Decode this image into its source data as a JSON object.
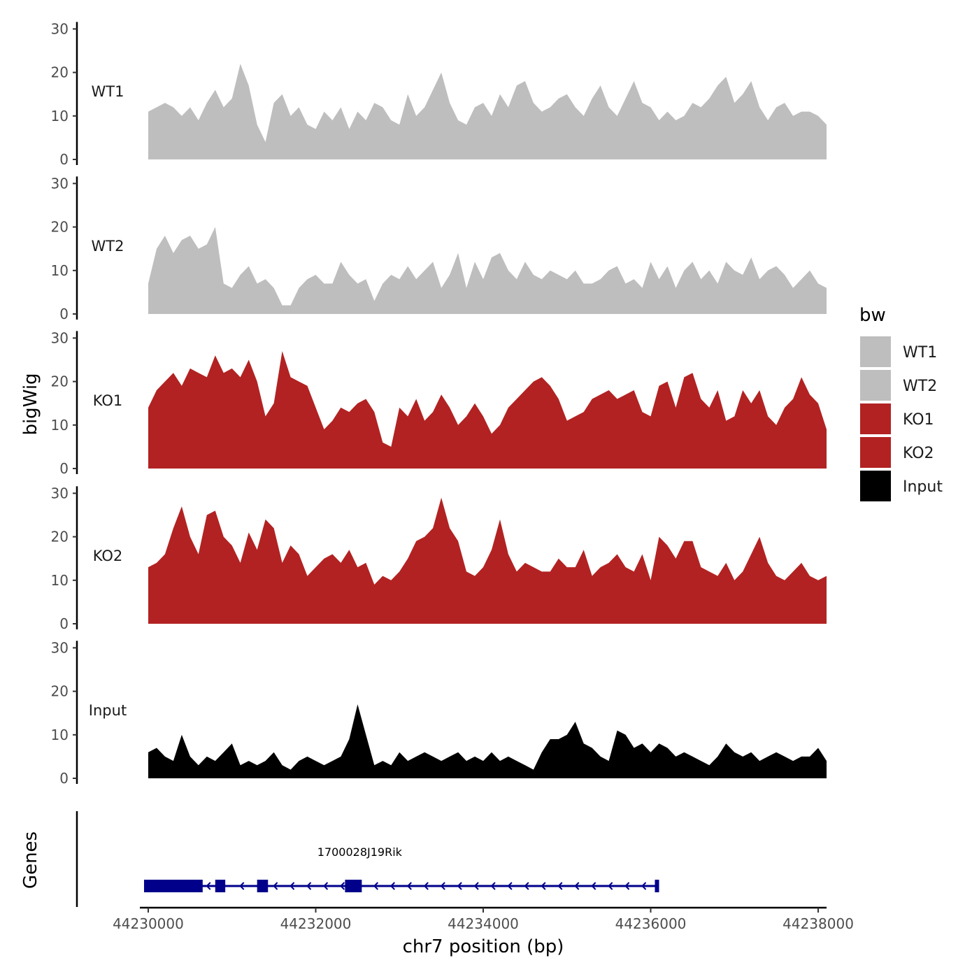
{
  "chart_data": {
    "type": "area",
    "title": "",
    "ylabel": "bigWig",
    "xlabel": "chr7 position (bp)",
    "genes_label": "Genes",
    "xlim": [
      44229900,
      44238100
    ],
    "ylim": [
      0,
      30
    ],
    "y_ticks": [
      0,
      10,
      20,
      30
    ],
    "x_ticks": [
      44230000,
      44232000,
      44234000,
      44236000,
      44238000
    ],
    "x_tick_labels": [
      "44230000",
      "44232000",
      "44234000",
      "44236000",
      "44238000"
    ],
    "legend": {
      "title": "bw",
      "position": "right",
      "entries": [
        {
          "label": "WT1",
          "color": "#bebebe"
        },
        {
          "label": "WT2",
          "color": "#bebebe"
        },
        {
          "label": "KO1",
          "color": "#b22222"
        },
        {
          "label": "KO2",
          "color": "#b22222"
        },
        {
          "label": "Input",
          "color": "#000000"
        }
      ]
    },
    "x_positions": [
      44230000,
      44230100,
      44230200,
      44230300,
      44230400,
      44230500,
      44230600,
      44230700,
      44230800,
      44230900,
      44231000,
      44231100,
      44231200,
      44231300,
      44231400,
      44231500,
      44231600,
      44231700,
      44231800,
      44231900,
      44232000,
      44232100,
      44232200,
      44232300,
      44232400,
      44232500,
      44232600,
      44232700,
      44232800,
      44232900,
      44233000,
      44233100,
      44233200,
      44233300,
      44233400,
      44233500,
      44233600,
      44233700,
      44233800,
      44233900,
      44234000,
      44234100,
      44234200,
      44234300,
      44234400,
      44234500,
      44234600,
      44234700,
      44234800,
      44234900,
      44235000,
      44235100,
      44235200,
      44235300,
      44235400,
      44235500,
      44235600,
      44235700,
      44235800,
      44235900,
      44236000,
      44236100,
      44236200,
      44236300,
      44236400,
      44236500,
      44236600,
      44236700,
      44236800,
      44236900,
      44237000,
      44237100,
      44237200,
      44237300,
      44237400,
      44237500,
      44237600,
      44237700,
      44237800,
      44237900,
      44238000,
      44238100
    ],
    "series": [
      {
        "name": "WT1",
        "color": "#bebebe",
        "values": [
          11,
          12,
          13,
          12,
          10,
          12,
          9,
          13,
          16,
          12,
          14,
          22,
          17,
          8,
          4,
          13,
          15,
          10,
          12,
          8,
          7,
          11,
          9,
          12,
          7,
          11,
          9,
          13,
          12,
          9,
          8,
          15,
          10,
          12,
          16,
          20,
          13,
          9,
          8,
          12,
          13,
          10,
          15,
          12,
          17,
          18,
          13,
          11,
          12,
          14,
          15,
          12,
          10,
          14,
          17,
          12,
          10,
          14,
          18,
          13,
          12,
          9,
          11,
          9,
          10,
          13,
          12,
          14,
          17,
          19,
          13,
          15,
          18,
          12,
          9,
          12,
          13,
          10,
          11,
          11,
          10,
          8
        ]
      },
      {
        "name": "WT2",
        "color": "#bebebe",
        "values": [
          7,
          15,
          18,
          14,
          17,
          18,
          15,
          16,
          20,
          7,
          6,
          9,
          11,
          7,
          8,
          6,
          2,
          2,
          6,
          8,
          9,
          7,
          7,
          12,
          9,
          7,
          8,
          3,
          7,
          9,
          8,
          11,
          8,
          10,
          12,
          6,
          9,
          14,
          6,
          12,
          8,
          13,
          14,
          10,
          8,
          12,
          9,
          8,
          10,
          9,
          8,
          10,
          7,
          7,
          8,
          10,
          11,
          7,
          8,
          6,
          12,
          8,
          11,
          6,
          10,
          12,
          8,
          10,
          7,
          12,
          10,
          9,
          13,
          8,
          10,
          11,
          9,
          6,
          8,
          10,
          7,
          6
        ]
      },
      {
        "name": "KO1",
        "color": "#b22222",
        "values": [
          14,
          18,
          20,
          22,
          19,
          23,
          22,
          21,
          26,
          22,
          23,
          21,
          25,
          20,
          12,
          15,
          27,
          21,
          20,
          19,
          14,
          9,
          11,
          14,
          13,
          15,
          16,
          13,
          6,
          5,
          14,
          12,
          16,
          11,
          13,
          17,
          14,
          10,
          12,
          15,
          12,
          8,
          10,
          14,
          16,
          18,
          20,
          21,
          19,
          16,
          11,
          12,
          13,
          16,
          17,
          18,
          16,
          17,
          18,
          13,
          12,
          19,
          20,
          14,
          21,
          22,
          16,
          14,
          18,
          11,
          12,
          18,
          15,
          18,
          12,
          10,
          14,
          16,
          21,
          17,
          15,
          9
        ]
      },
      {
        "name": "KO2",
        "color": "#b22222",
        "values": [
          13,
          14,
          16,
          22,
          27,
          20,
          16,
          25,
          26,
          20,
          18,
          14,
          21,
          17,
          24,
          22,
          14,
          18,
          16,
          11,
          13,
          15,
          16,
          14,
          17,
          13,
          14,
          9,
          11,
          10,
          12,
          15,
          19,
          20,
          22,
          29,
          22,
          19,
          12,
          11,
          13,
          17,
          24,
          16,
          12,
          14,
          13,
          12,
          12,
          15,
          13,
          13,
          17,
          11,
          13,
          14,
          16,
          13,
          12,
          16,
          10,
          20,
          18,
          15,
          19,
          19,
          13,
          12,
          11,
          14,
          10,
          12,
          16,
          20,
          14,
          11,
          10,
          12,
          14,
          11,
          10,
          11
        ]
      },
      {
        "name": "Input",
        "color": "#000000",
        "values": [
          6,
          7,
          5,
          4,
          10,
          5,
          3,
          5,
          4,
          6,
          8,
          3,
          4,
          3,
          4,
          6,
          3,
          2,
          4,
          5,
          4,
          3,
          4,
          5,
          9,
          17,
          10,
          3,
          4,
          3,
          6,
          4,
          5,
          6,
          5,
          4,
          5,
          6,
          4,
          5,
          4,
          6,
          4,
          5,
          4,
          3,
          2,
          6,
          9,
          9,
          10,
          13,
          8,
          7,
          5,
          4,
          11,
          10,
          7,
          8,
          6,
          8,
          7,
          5,
          6,
          5,
          4,
          3,
          5,
          8,
          6,
          5,
          6,
          4,
          5,
          6,
          5,
          4,
          5,
          5,
          7,
          4
        ]
      }
    ],
    "genes": [
      {
        "name": "1700028J19Rik",
        "start": 44229950,
        "end": 44236100,
        "strand": "-",
        "exons": [
          [
            44229950,
            44230650
          ],
          [
            44230800,
            44230920
          ],
          [
            44231300,
            44231430
          ],
          [
            44232350,
            44232550
          ],
          [
            44236050,
            44236100
          ]
        ]
      }
    ]
  }
}
